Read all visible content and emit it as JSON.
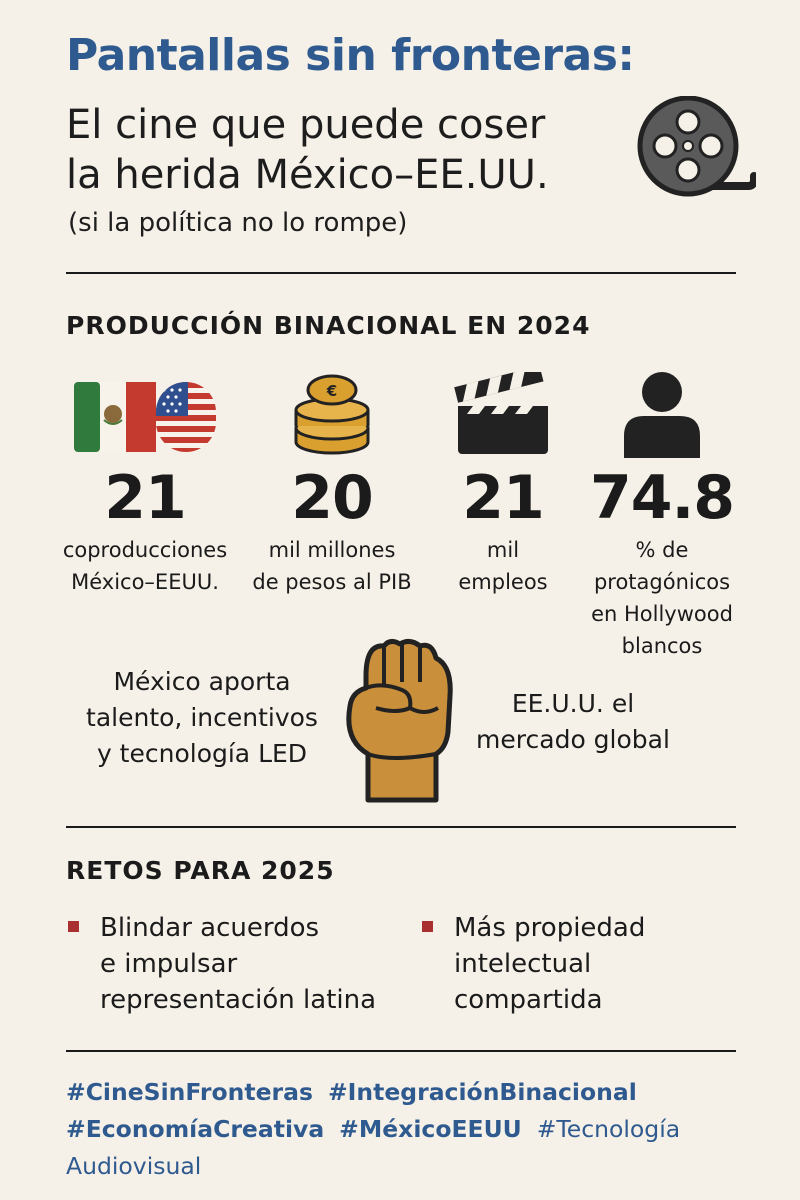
{
  "header": {
    "title": "Pantallas sin fronteras:",
    "headline_line1": "El cine que puede coser",
    "headline_line2": "la herida México–EE.UU.",
    "subtitle": "(si la política no lo rompe)",
    "icon": "film-reel-icon"
  },
  "production": {
    "section_title": "PRODUCCIÓN BINACIONAL EN 2024",
    "stats": [
      {
        "icon": "mexico-usa-flags-icon",
        "value": "21",
        "label_line1": "coproducciones",
        "label_line2": "México–EEUU.",
        "label_line3": ""
      },
      {
        "icon": "coins-stack-icon",
        "value": "20",
        "label_line1": "mil millones",
        "label_line2": "de pesos al PIB",
        "label_line3": ""
      },
      {
        "icon": "clapperboard-icon",
        "value": "21",
        "label_line1": "mil",
        "label_line2": "empleos",
        "label_line3": ""
      },
      {
        "icon": "person-icon",
        "value": "74.8",
        "label_line1": "% de",
        "label_line2": "protagónicos",
        "label_line3": "en Hollywood",
        "label_line4": "blancos"
      }
    ],
    "mexico_contribution": [
      "México aporta",
      "talento, incentivos",
      "y tecnología LED"
    ],
    "usa_contribution": [
      "EE.U.U. el",
      "mercado global"
    ],
    "center_icon": "raised-fist-icon"
  },
  "challenges": {
    "section_title": "RETOS PARA 2025",
    "items": [
      {
        "lines": [
          "Blindar acuerdos",
          "e impulsar",
          "representación latina"
        ]
      },
      {
        "lines": [
          "Más propiedad",
          "intelectual",
          "compartida"
        ]
      }
    ],
    "bullet_color": "#a8302f"
  },
  "hashtags": {
    "line1": [
      "#CineSinFronteras",
      "#IntegraciónBinacional"
    ],
    "line2": [
      "#EconomíaCreativa",
      "#MéxicoEEUU",
      "#Tecnología"
    ],
    "line3": [
      "Audiovisual"
    ]
  },
  "colors": {
    "background": "#f6f1e8",
    "title_blue": "#2f5a8f",
    "text": "#1b1b1b",
    "accent_red": "#a8302f",
    "coin_gold": "#d9a030",
    "fist": "#c98f3a"
  }
}
